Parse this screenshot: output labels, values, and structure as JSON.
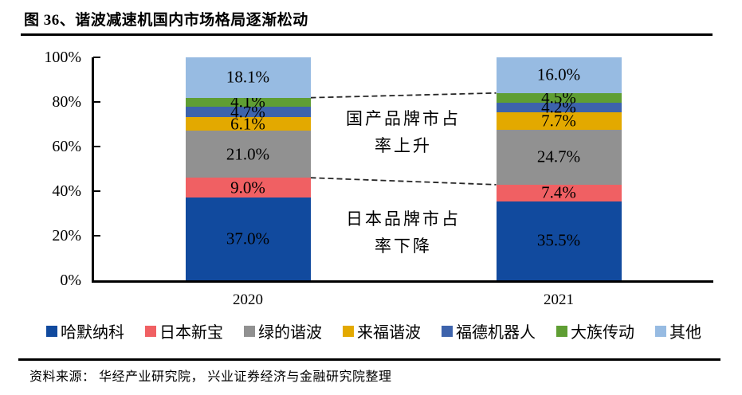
{
  "title": "图 36、谐波减速机国内市场格局逐渐松动",
  "source": "资料来源： 华经产业研究院， 兴业证券经济与金融研究院整理",
  "annotations": {
    "domestic": "国产品牌市占\n率上升",
    "japanese": "日本品牌市占\n率下降"
  },
  "chart_data": {
    "type": "bar",
    "stacked": true,
    "title": "谐波减速机国内市场格局",
    "categories": [
      "2020",
      "2021"
    ],
    "series": [
      {
        "name": "哈默纳科",
        "color": "#114A9E",
        "values": [
          37.0,
          35.5
        ]
      },
      {
        "name": "日本新宝",
        "color": "#F06063",
        "values": [
          9.0,
          7.4
        ]
      },
      {
        "name": "绿的谐波",
        "color": "#919191",
        "values": [
          21.0,
          24.7
        ]
      },
      {
        "name": "来福谐波",
        "color": "#E3A900",
        "values": [
          6.1,
          7.7
        ]
      },
      {
        "name": "福德机器人",
        "color": "#3D63AC",
        "values": [
          4.7,
          4.2
        ]
      },
      {
        "name": "大族传动",
        "color": "#5F9E33",
        "values": [
          4.1,
          4.5
        ]
      },
      {
        "name": "其他",
        "color": "#97BBE2",
        "values": [
          18.1,
          16.0
        ]
      }
    ],
    "y_ticks": [
      "0%",
      "20%",
      "40%",
      "60%",
      "80%",
      "100%"
    ],
    "ylim": [
      0,
      100
    ],
    "value_suffix": "%",
    "legend_position": "bottom",
    "region_dividers": [
      {
        "after_series": "大族传动",
        "style": "dashed"
      },
      {
        "after_series": "日本新宝",
        "style": "dashed"
      }
    ]
  }
}
